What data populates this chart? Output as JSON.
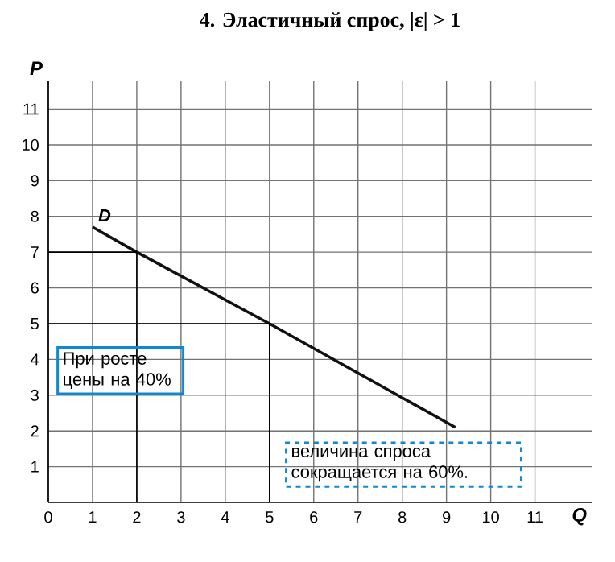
{
  "chart_data": {
    "type": "line",
    "title": "4. Эластичный спрос, |ε| > 1",
    "xlabel": "Q",
    "ylabel": "P",
    "x": [
      1,
      2,
      5,
      9.2
    ],
    "series": [
      {
        "name": "D",
        "color": "#111111",
        "values": [
          7.7,
          7,
          5,
          2.1
        ]
      }
    ],
    "xlim": [
      0,
      12.3
    ],
    "xticks": [
      0,
      1,
      2,
      3,
      4,
      5,
      6,
      7,
      8,
      9,
      10,
      11
    ],
    "ylim": [
      0,
      11.8
    ],
    "yticks": [
      1,
      2,
      3,
      4,
      5,
      6,
      7,
      8,
      9,
      10,
      11
    ],
    "grid": true,
    "marker": "none",
    "line_style": "solid",
    "ref_lines": [
      {
        "axis": "y",
        "value": 7
      },
      {
        "axis": "x",
        "value": 2
      },
      {
        "axis": "y",
        "value": 5
      },
      {
        "axis": "x",
        "value": 5
      }
    ],
    "annotations": [
      "При росте цены на 40%",
      "величина спроса сокращается на 60%."
    ]
  }
}
